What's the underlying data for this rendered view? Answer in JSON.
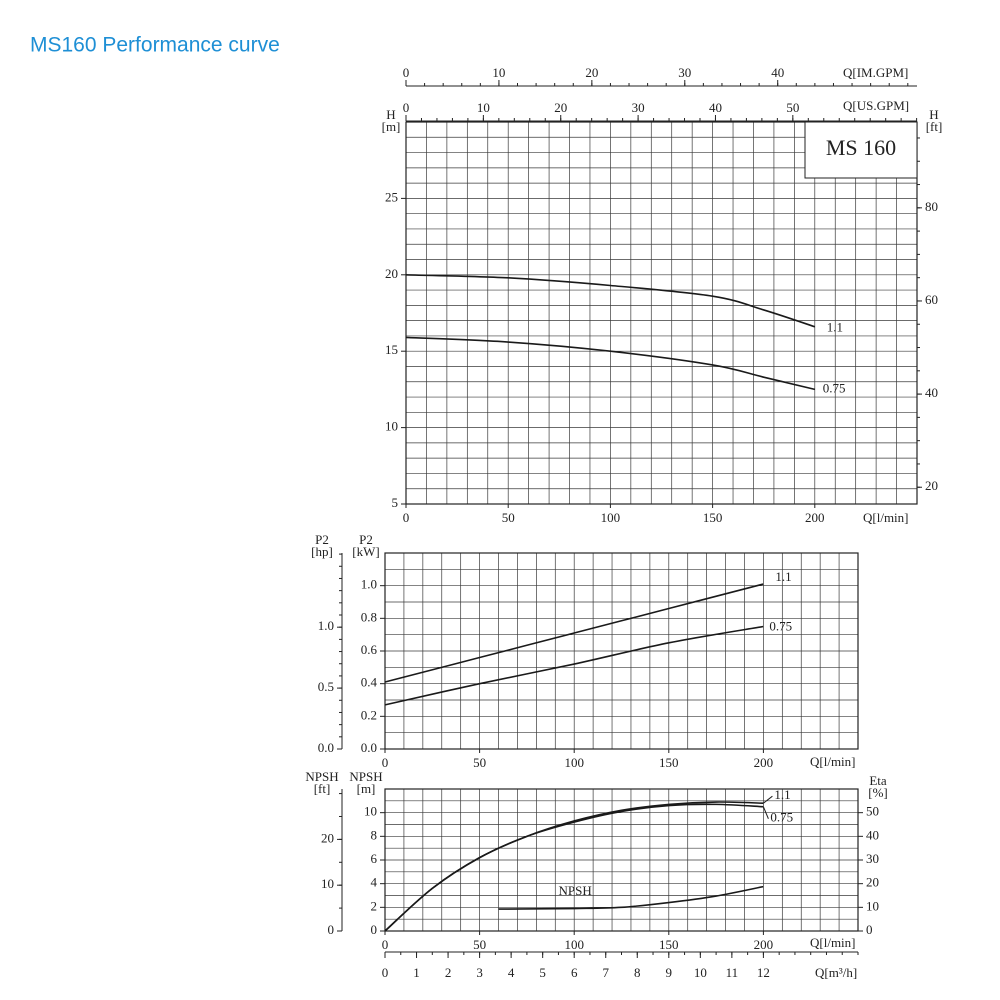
{
  "title": "MS160 Performance curve",
  "chart_data": [
    {
      "type": "line",
      "annotation": "MS 160",
      "grid": true,
      "xlabel": "Q[l/min]",
      "xlim": [
        0,
        250
      ],
      "xticks": [
        0,
        50,
        100,
        150,
        200
      ],
      "xgrid_step": 10,
      "ylabel": "H",
      "yunit": "[m]",
      "ylim": [
        5,
        30
      ],
      "yticks": [
        5,
        10,
        15,
        20,
        25
      ],
      "ygrid_step": 1,
      "y2label": "H",
      "y2unit": "[ft]",
      "y2lim": [
        16.4,
        98.43
      ],
      "y2ticks": [
        20,
        40,
        60,
        80
      ],
      "y2minor_step": 5,
      "top_axes": [
        {
          "label": "Q[US.GPM]",
          "lim": [
            0,
            66.05
          ],
          "ticks": [
            0,
            10,
            20,
            30,
            40,
            50
          ],
          "minor_step": 2
        },
        {
          "label": "Q[IM.GPM]",
          "lim": [
            0,
            54.99
          ],
          "ticks": [
            0,
            10,
            20,
            30,
            40
          ],
          "minor_step": 2
        }
      ],
      "series": [
        {
          "name": "1.1",
          "color": "#1a1a1a",
          "x": [
            0,
            50,
            100,
            150,
            175,
            200
          ],
          "values": [
            20,
            19.8,
            19.3,
            18.6,
            17.7,
            16.6
          ]
        },
        {
          "name": "0.75",
          "color": "#1a1a1a",
          "x": [
            0,
            50,
            100,
            150,
            175,
            200
          ],
          "values": [
            15.9,
            15.6,
            15,
            14.1,
            13.3,
            12.5
          ]
        }
      ]
    },
    {
      "type": "line",
      "grid": true,
      "xlabel": "Q[l/min]",
      "xlim": [
        0,
        250
      ],
      "xticks": [
        0,
        50,
        100,
        150,
        200
      ],
      "xgrid_step": 10,
      "ylabel": "P2",
      "yunit": "[kW]",
      "ylim": [
        0,
        1.2
      ],
      "yticks": [
        {
          "value": 0,
          "label": "0.0"
        },
        0.2,
        0.4,
        0.6,
        0.8,
        {
          "value": 1,
          "label": "1.0"
        }
      ],
      "ygrid_step": 0.1,
      "y2label": "P2",
      "y2unit": "[hp]",
      "y2lim": [
        0,
        1.609
      ],
      "y2ticks": [
        {
          "value": 0,
          "label": "0.0"
        },
        0.5,
        {
          "value": 1,
          "label": "1.0"
        }
      ],
      "y2minor_step": 0.1,
      "series": [
        {
          "name": "1.1",
          "color": "#1a1a1a",
          "x": [
            0,
            50,
            100,
            150,
            200
          ],
          "values": [
            0.41,
            0.56,
            0.71,
            0.86,
            1.01
          ]
        },
        {
          "name": "0.75",
          "color": "#1a1a1a",
          "x": [
            0,
            50,
            100,
            150,
            200
          ],
          "values": [
            0.27,
            0.4,
            0.52,
            0.65,
            0.75
          ]
        }
      ]
    },
    {
      "type": "line",
      "grid": true,
      "xlabel": "Q[l/min]",
      "xlim": [
        0,
        250
      ],
      "xticks": [
        0,
        50,
        100,
        150,
        200
      ],
      "xgrid_step": 10,
      "ylabel": "NPSH",
      "yunit": "[m]",
      "ylim": [
        0,
        12
      ],
      "yticks": [
        0,
        2,
        4,
        6,
        8,
        10
      ],
      "ygrid_step": 1,
      "y2label": "Eta",
      "y2unit": "[%]",
      "y2lim": [
        0,
        60
      ],
      "y2ticks": [
        0,
        10,
        20,
        30,
        40,
        50
      ],
      "y3label": "NPSH",
      "y3unit": "[ft]",
      "y3lim": [
        0,
        31
      ],
      "y3ticks": [
        0,
        10,
        20
      ],
      "y3minor_step": 5,
      "bottom_axes": [
        {
          "label": "Q[m³/h]",
          "lim": [
            0,
            15
          ],
          "ticks": [
            0,
            1,
            2,
            3,
            4,
            5,
            6,
            7,
            8,
            9,
            10,
            11,
            12
          ],
          "minor_step": 0.5
        }
      ],
      "series": [
        {
          "name": "1.1",
          "color": "#1a1a1a",
          "axis": "y2",
          "x": [
            0,
            25,
            50,
            75,
            100,
            125,
            150,
            175,
            200
          ],
          "values": [
            0,
            18,
            31,
            40,
            46.5,
            51,
            53.5,
            54.5,
            54
          ]
        },
        {
          "name": "0.75",
          "color": "#1a1a1a",
          "axis": "y2",
          "x": [
            0,
            25,
            50,
            75,
            100,
            125,
            150,
            175,
            200
          ],
          "values": [
            0,
            18,
            31,
            40,
            46,
            50.5,
            53,
            53.5,
            52.5
          ]
        },
        {
          "name": "NPSH",
          "color": "#1a1a1a",
          "x": [
            60,
            100,
            125,
            150,
            175,
            200
          ],
          "values": [
            1.85,
            1.9,
            2,
            2.4,
            2.95,
            3.75
          ]
        }
      ]
    }
  ]
}
